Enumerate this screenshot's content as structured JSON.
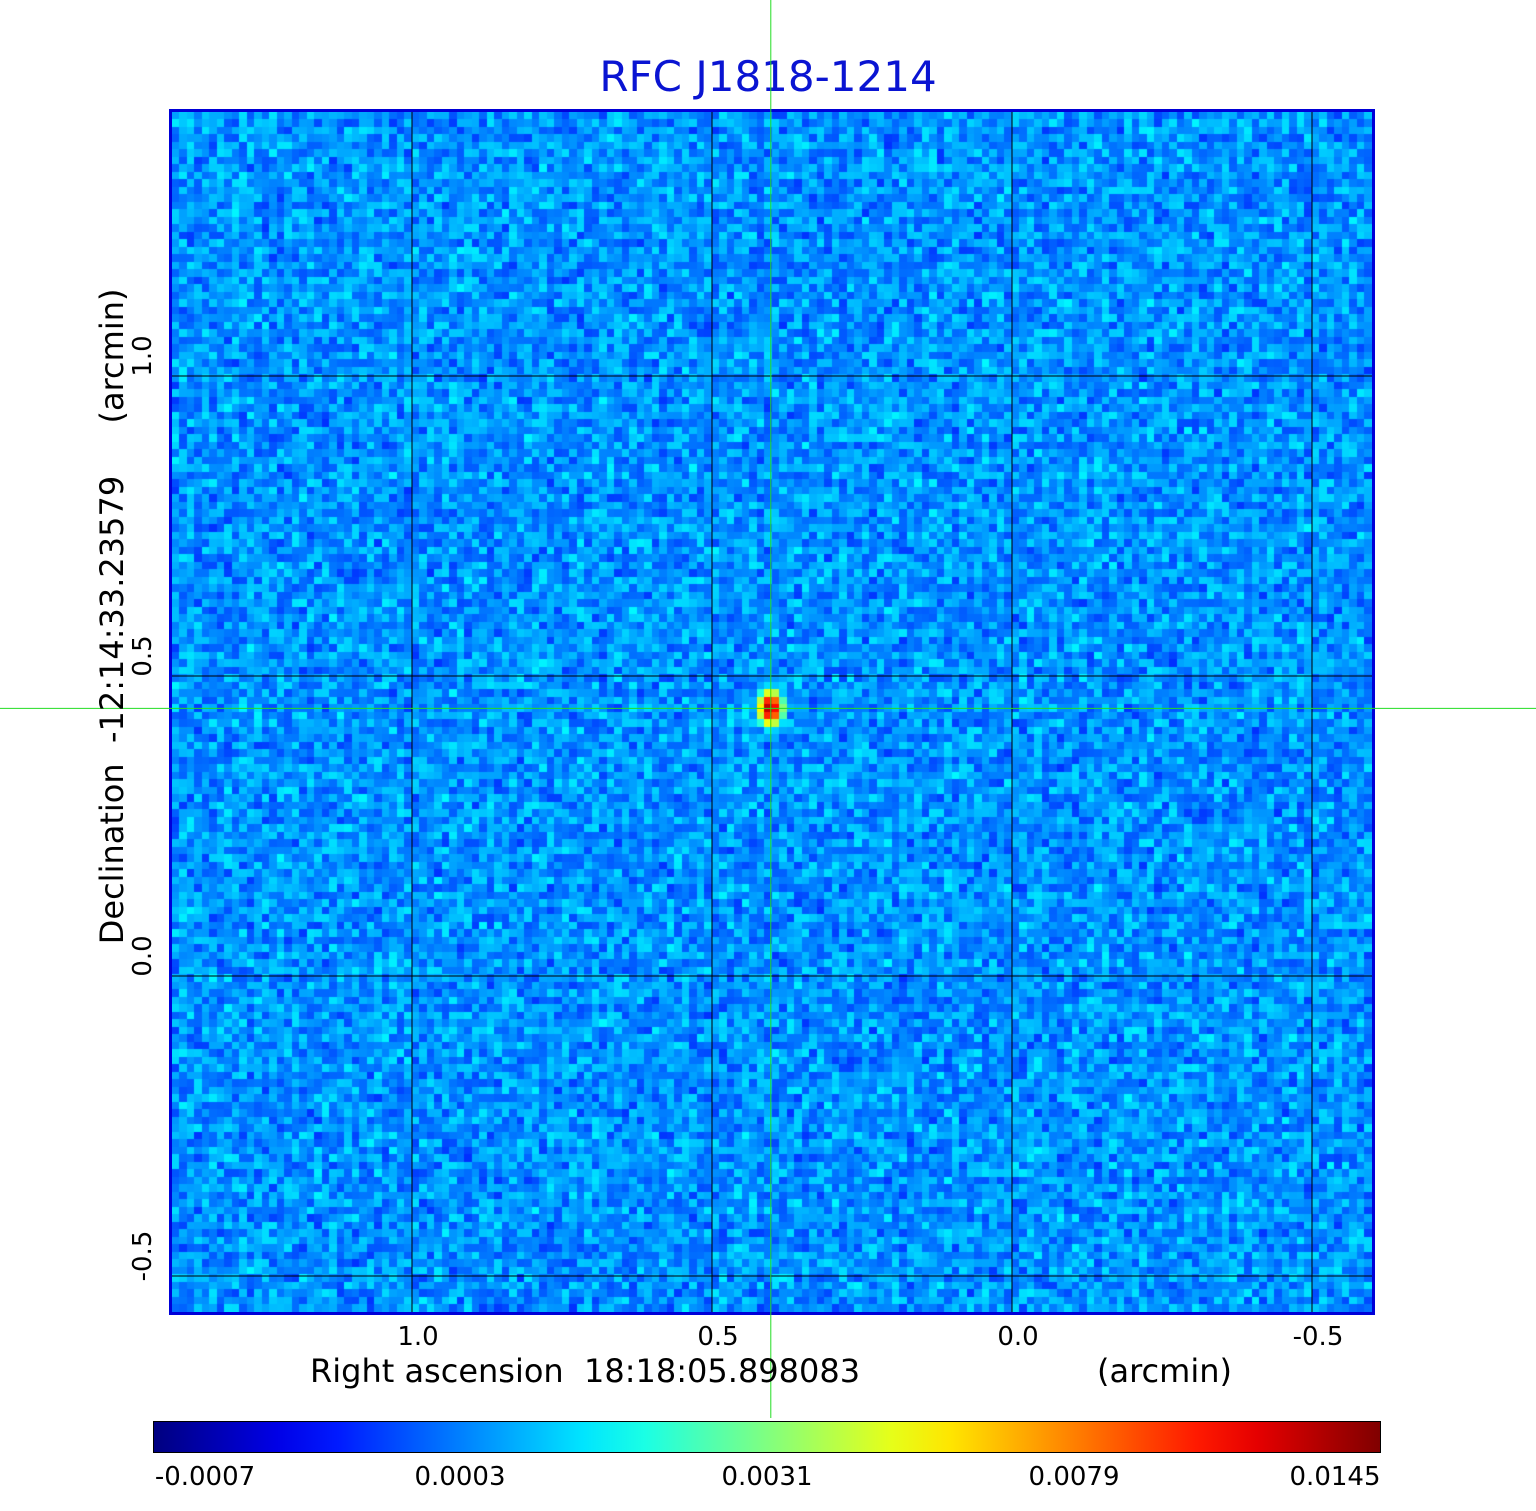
{
  "chart_data": {
    "type": "heatmap",
    "title": "RFC J1818-1214",
    "xlabel": "Right ascension  18:18:05.898083",
    "xunit": "(arcmin)",
    "ylabel": "Declination  -12:14:33.23579",
    "yunit": "(arcmin)",
    "xlim": [
      1.4,
      -0.6
    ],
    "ylim": [
      -0.56,
      1.44
    ],
    "x_ticks": [
      "1.0",
      "0.5",
      "0.0",
      "-0.5"
    ],
    "x_tick_values": [
      1.0,
      0.5,
      0.0,
      -0.5
    ],
    "y_ticks": [
      "-0.5",
      "0.0",
      "0.5",
      "1.0"
    ],
    "y_tick_values": [
      -0.5,
      0.0,
      0.5,
      1.0
    ],
    "grid": true,
    "colorscale": "jet",
    "colorbar_ticks": [
      "-0.0007",
      "0.0003",
      "0.0031",
      "0.0079",
      "0.0145"
    ],
    "value_range": [
      -0.0007,
      0.0145
    ],
    "crosshair": {
      "x": 0.402,
      "y": 0.446,
      "color": "#22dd22"
    },
    "peak": {
      "x": 0.402,
      "y": 0.446,
      "value": 0.0145
    },
    "noise_level": 0.0003
  },
  "colors": {
    "title": "#0a14d2",
    "frame": "#0000d8",
    "grid": "#000000",
    "crosshair": "#22dd22"
  }
}
